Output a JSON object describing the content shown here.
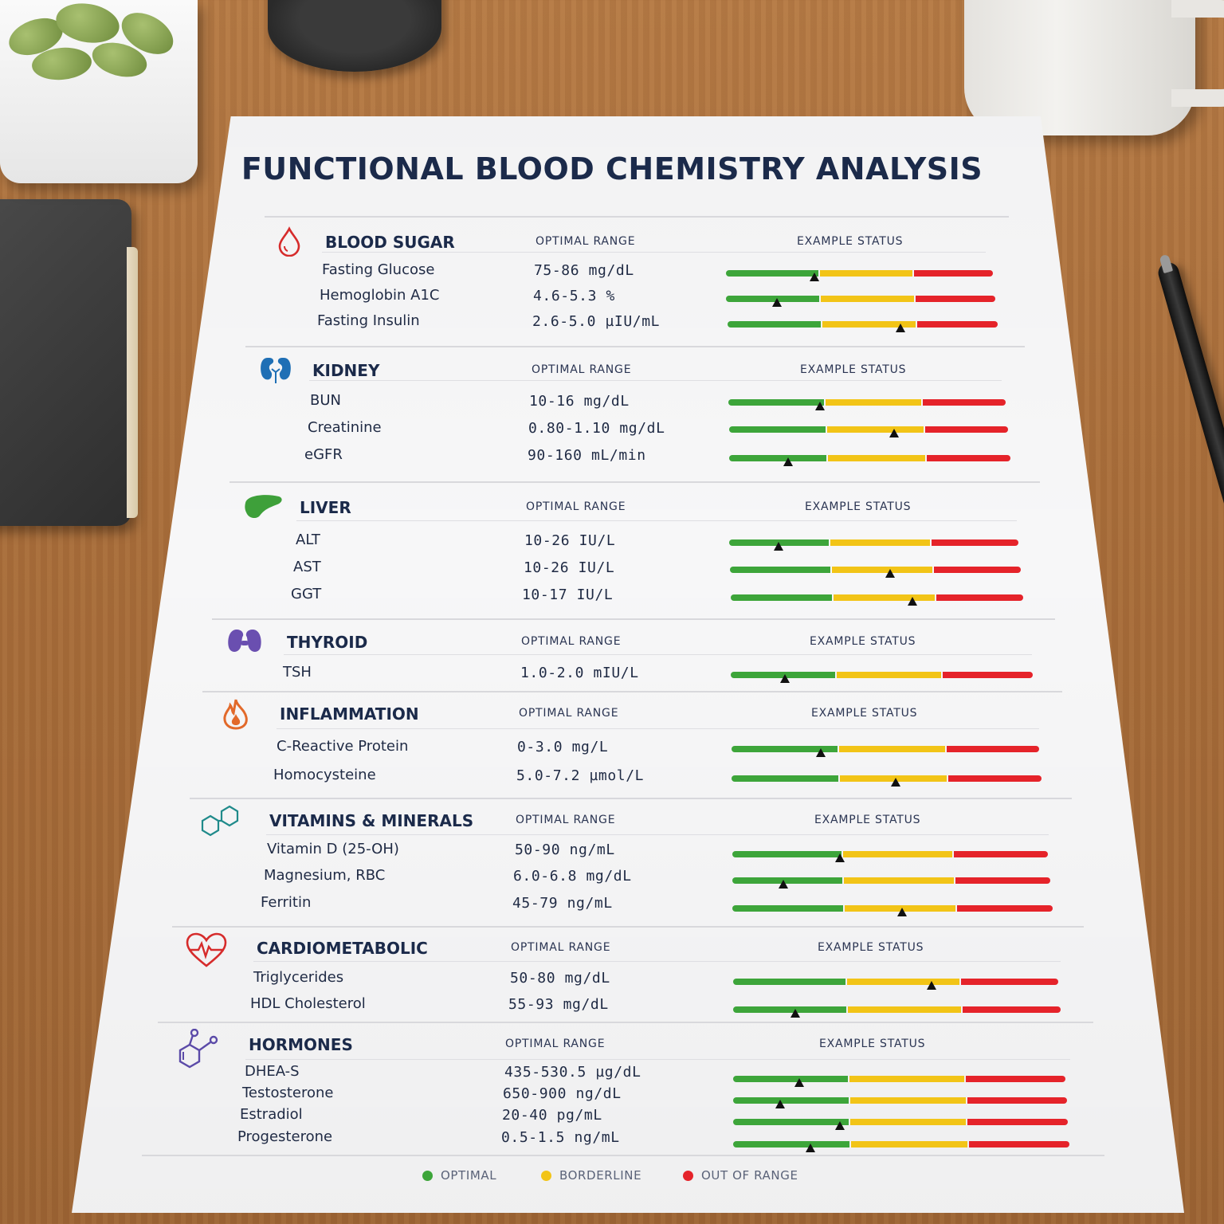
{
  "document": {
    "title": "FUNCTIONAL BLOOD CHEMISTRY ANALYSIS",
    "column_range_label": "OPTIMAL RANGE",
    "column_status_label": "EXAMPLE STATUS",
    "sections": [
      {
        "title": "BLOOD SUGAR",
        "icon": "blood-drop-icon",
        "icon_color": "#d62b2b",
        "markers": [
          {
            "name": "Fasting Glucose",
            "range": "75-86 mg/dL",
            "status_fraction": 0.33
          },
          {
            "name": "Hemoglobin A1C",
            "range": "4.6-5.3 %",
            "status_fraction": 0.19
          },
          {
            "name": "Fasting Insulin",
            "range": "2.6-5.0 µIU/mL",
            "status_fraction": 0.64
          }
        ]
      },
      {
        "title": "KIDNEY",
        "icon": "kidney-icon",
        "icon_color": "#1f6fb5",
        "markers": [
          {
            "name": "BUN",
            "range": "10-16 mg/dL",
            "status_fraction": 0.33
          },
          {
            "name": "Creatinine",
            "range": "0.80-1.10 mg/dL",
            "status_fraction": 0.59
          },
          {
            "name": "eGFR",
            "range": "90-160 mL/min",
            "status_fraction": 0.21
          }
        ]
      },
      {
        "title": "LIVER",
        "icon": "liver-icon",
        "icon_color": "#3ea03a",
        "markers": [
          {
            "name": "ALT",
            "range": "10-26 IU/L",
            "status_fraction": 0.17
          },
          {
            "name": "AST",
            "range": "10-26 IU/L",
            "status_fraction": 0.55
          },
          {
            "name": "GGT",
            "range": "10-17 IU/L",
            "status_fraction": 0.62
          }
        ]
      },
      {
        "title": "THYROID",
        "icon": "thyroid-icon",
        "icon_color": "#6a4fb0",
        "markers": [
          {
            "name": "TSH",
            "range": "1.0-2.0 mIU/L",
            "status_fraction": 0.18
          }
        ]
      },
      {
        "title": "INFLAMMATION",
        "icon": "flame-icon",
        "icon_color": "#e2692a",
        "markers": [
          {
            "name": "C-Reactive Protein",
            "range": "0-3.0 mg/L",
            "status_fraction": 0.29
          },
          {
            "name": "Homocysteine",
            "range": "5.0-7.2 µmol/L",
            "status_fraction": 0.53
          }
        ]
      },
      {
        "title": "VITAMINS & MINERALS",
        "icon": "molecule-hexagon-icon",
        "icon_color": "#1f8a8a",
        "markers": [
          {
            "name": "Vitamin D (25-OH)",
            "range": "50-90 ng/mL",
            "status_fraction": 0.34
          },
          {
            "name": "Magnesium, RBC",
            "range": "6.0-6.8 mg/dL",
            "status_fraction": 0.16
          },
          {
            "name": "Ferritin",
            "range": "45-79 ng/mL",
            "status_fraction": 0.53
          }
        ]
      },
      {
        "title": "CARDIOMETABOLIC",
        "icon": "heart-pulse-icon",
        "icon_color": "#d62b2b",
        "markers": [
          {
            "name": "Triglycerides",
            "range": "50-80 mg/dL",
            "status_fraction": 0.61
          },
          {
            "name": "HDL Cholesterol",
            "range": "55-93 mg/dL",
            "status_fraction": 0.19
          }
        ]
      },
      {
        "title": "HORMONES",
        "icon": "steroid-molecule-icon",
        "icon_color": "#5b4aa8",
        "markers": [
          {
            "name": "DHEA-S",
            "range": "435-530.5 µg/dL",
            "status_fraction": 0.2
          },
          {
            "name": "Testosterone",
            "range": "650-900 ng/dL",
            "status_fraction": 0.14
          },
          {
            "name": "Estradiol",
            "range": "20-40 pg/mL",
            "status_fraction": 0.32
          },
          {
            "name": "Progesterone",
            "range": "0.5-1.5 ng/mL",
            "status_fraction": 0.23
          }
        ]
      }
    ],
    "legend": [
      {
        "label": "OPTIMAL",
        "color": "#3da53a"
      },
      {
        "label": "BORDERLINE",
        "color": "#f2c417"
      },
      {
        "label": "OUT OF RANGE",
        "color": "#e5232a"
      }
    ]
  }
}
